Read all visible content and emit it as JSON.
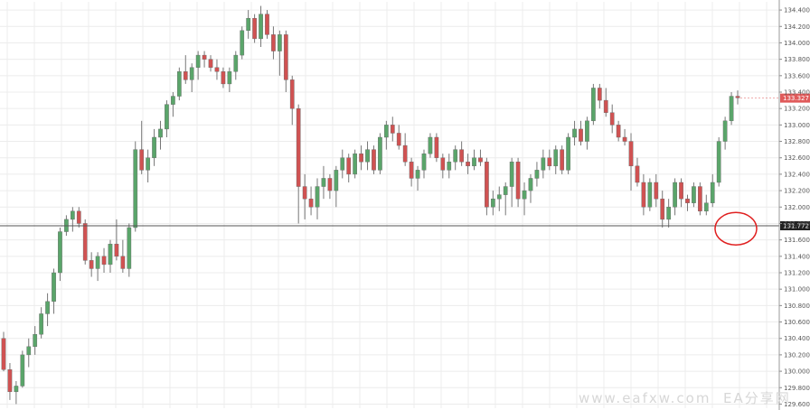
{
  "chart_data": {
    "type": "candlestick",
    "y_axis_ticks": [
      "134.400",
      "134.200",
      "134.000",
      "133.800",
      "133.600",
      "133.400",
      "133.200",
      "133.000",
      "132.800",
      "132.600",
      "132.400",
      "132.200",
      "132.000",
      "131.800",
      "131.600",
      "131.400",
      "131.200",
      "131.000",
      "130.800",
      "130.600",
      "130.400",
      "130.200",
      "130.000",
      "129.800",
      "129.600"
    ],
    "ylim": [
      129.55,
      134.5
    ],
    "grid": true,
    "current_price": {
      "label": "133.327",
      "value": 133.327,
      "color": "#e05a5a"
    },
    "horizontal_level": {
      "label": "131.772",
      "value": 131.772,
      "color": "#555555"
    },
    "colors": {
      "up": "#5aa56a",
      "down": "#d05252",
      "wick": "#777777",
      "grid": "#ececec",
      "circle": "#e02020"
    },
    "highlight": {
      "shape": "ellipse",
      "at_candle_index": 120,
      "price": 131.78
    },
    "candles": [
      [
        130.4,
        130.48,
        130.0,
        130.02
      ],
      [
        130.02,
        130.1,
        129.65,
        129.75
      ],
      [
        129.75,
        129.88,
        129.6,
        129.82
      ],
      [
        129.82,
        130.25,
        129.8,
        130.2
      ],
      [
        130.2,
        130.4,
        130.05,
        130.3
      ],
      [
        130.3,
        130.55,
        130.2,
        130.45
      ],
      [
        130.45,
        130.78,
        130.4,
        130.7
      ],
      [
        130.7,
        130.95,
        130.55,
        130.85
      ],
      [
        130.85,
        131.25,
        130.7,
        131.2
      ],
      [
        131.2,
        131.75,
        131.1,
        131.7
      ],
      [
        131.7,
        131.9,
        131.65,
        131.85
      ],
      [
        131.85,
        132.0,
        131.7,
        131.95
      ],
      [
        131.95,
        132.0,
        131.75,
        131.8
      ],
      [
        131.8,
        131.85,
        131.3,
        131.35
      ],
      [
        131.35,
        131.45,
        131.15,
        131.25
      ],
      [
        131.25,
        131.45,
        131.1,
        131.4
      ],
      [
        131.4,
        131.5,
        131.2,
        131.3
      ],
      [
        131.3,
        131.6,
        131.2,
        131.55
      ],
      [
        131.55,
        131.85,
        131.35,
        131.4
      ],
      [
        131.4,
        131.6,
        131.2,
        131.25
      ],
      [
        131.25,
        131.8,
        131.15,
        131.75
      ],
      [
        131.75,
        132.8,
        131.7,
        132.7
      ],
      [
        132.7,
        133.05,
        132.4,
        132.45
      ],
      [
        132.45,
        132.7,
        132.3,
        132.6
      ],
      [
        132.6,
        132.95,
        132.5,
        132.85
      ],
      [
        132.85,
        133.05,
        132.7,
        132.95
      ],
      [
        132.95,
        133.3,
        132.85,
        133.25
      ],
      [
        133.25,
        133.4,
        133.1,
        133.35
      ],
      [
        133.35,
        133.7,
        133.3,
        133.65
      ],
      [
        133.65,
        133.85,
        133.5,
        133.55
      ],
      [
        133.55,
        133.75,
        133.4,
        133.7
      ],
      [
        133.7,
        133.9,
        133.55,
        133.85
      ],
      [
        133.85,
        133.9,
        133.7,
        133.8
      ],
      [
        133.8,
        133.85,
        133.65,
        133.7
      ],
      [
        133.7,
        133.8,
        133.55,
        133.65
      ],
      [
        133.65,
        133.7,
        133.45,
        133.5
      ],
      [
        133.5,
        133.7,
        133.4,
        133.65
      ],
      [
        133.65,
        133.9,
        133.55,
        133.85
      ],
      [
        133.85,
        134.2,
        133.8,
        134.15
      ],
      [
        134.15,
        134.4,
        134.05,
        134.3
      ],
      [
        134.3,
        134.35,
        134.0,
        134.05
      ],
      [
        134.05,
        134.45,
        133.95,
        134.35
      ],
      [
        134.35,
        134.4,
        134.05,
        134.1
      ],
      [
        134.1,
        134.2,
        133.8,
        133.9
      ],
      [
        133.9,
        134.15,
        133.6,
        134.1
      ],
      [
        134.1,
        134.15,
        133.4,
        133.55
      ],
      [
        133.55,
        133.6,
        133.0,
        133.2
      ],
      [
        133.2,
        133.25,
        131.8,
        132.25
      ],
      [
        132.25,
        132.4,
        131.85,
        132.1
      ],
      [
        132.1,
        132.25,
        131.9,
        132.0
      ],
      [
        132.0,
        132.35,
        131.85,
        132.25
      ],
      [
        132.25,
        132.5,
        132.1,
        132.35
      ],
      [
        132.35,
        132.4,
        132.1,
        132.2
      ],
      [
        132.2,
        132.5,
        132.0,
        132.45
      ],
      [
        132.45,
        132.7,
        132.35,
        132.6
      ],
      [
        132.6,
        132.65,
        132.3,
        132.4
      ],
      [
        132.4,
        132.7,
        132.35,
        132.65
      ],
      [
        132.65,
        132.75,
        132.45,
        132.55
      ],
      [
        132.55,
        132.8,
        132.45,
        132.7
      ],
      [
        132.7,
        132.75,
        132.4,
        132.45
      ],
      [
        132.45,
        132.9,
        132.4,
        132.85
      ],
      [
        132.85,
        133.05,
        132.7,
        133.0
      ],
      [
        133.0,
        133.1,
        132.8,
        132.9
      ],
      [
        132.9,
        133.0,
        132.7,
        132.75
      ],
      [
        132.75,
        132.9,
        132.5,
        132.55
      ],
      [
        132.55,
        132.6,
        132.25,
        132.35
      ],
      [
        132.35,
        132.5,
        132.2,
        132.45
      ],
      [
        132.45,
        132.7,
        132.35,
        132.65
      ],
      [
        132.65,
        132.9,
        132.6,
        132.85
      ],
      [
        132.85,
        132.9,
        132.55,
        132.6
      ],
      [
        132.6,
        132.65,
        132.35,
        132.45
      ],
      [
        132.45,
        132.65,
        132.35,
        132.55
      ],
      [
        132.55,
        132.75,
        132.45,
        132.7
      ],
      [
        132.7,
        132.8,
        132.5,
        132.55
      ],
      [
        132.55,
        132.65,
        132.4,
        132.5
      ],
      [
        132.5,
        132.7,
        132.45,
        132.6
      ],
      [
        132.6,
        132.7,
        132.5,
        132.55
      ],
      [
        132.55,
        132.6,
        131.9,
        132.0
      ],
      [
        132.0,
        132.2,
        131.9,
        132.1
      ],
      [
        132.1,
        132.25,
        131.95,
        132.15
      ],
      [
        132.15,
        132.3,
        131.9,
        132.25
      ],
      [
        132.25,
        132.6,
        132.0,
        132.55
      ],
      [
        132.55,
        132.6,
        132.0,
        132.1
      ],
      [
        132.1,
        132.3,
        131.9,
        132.2
      ],
      [
        132.2,
        132.4,
        132.05,
        132.35
      ],
      [
        132.35,
        132.55,
        132.25,
        132.45
      ],
      [
        132.45,
        132.7,
        132.35,
        132.6
      ],
      [
        132.6,
        132.7,
        132.45,
        132.5
      ],
      [
        132.5,
        132.75,
        132.4,
        132.7
      ],
      [
        132.7,
        132.75,
        132.4,
        132.45
      ],
      [
        132.45,
        132.9,
        132.4,
        132.85
      ],
      [
        132.85,
        133.05,
        132.75,
        132.95
      ],
      [
        132.95,
        133.05,
        132.75,
        132.8
      ],
      [
        132.8,
        133.1,
        132.7,
        133.05
      ],
      [
        133.05,
        133.5,
        133.0,
        133.45
      ],
      [
        133.45,
        133.5,
        133.2,
        133.3
      ],
      [
        133.3,
        133.45,
        133.1,
        133.15
      ],
      [
        133.15,
        133.25,
        132.9,
        133.0
      ],
      [
        133.0,
        133.05,
        132.8,
        132.85
      ],
      [
        132.85,
        132.95,
        132.75,
        132.8
      ],
      [
        132.8,
        132.9,
        132.2,
        132.5
      ],
      [
        132.5,
        132.6,
        132.25,
        132.3
      ],
      [
        132.3,
        132.4,
        131.9,
        132.0
      ],
      [
        132.0,
        132.35,
        131.95,
        132.3
      ],
      [
        132.3,
        132.4,
        132.0,
        132.1
      ],
      [
        132.1,
        132.2,
        131.75,
        131.85
      ],
      [
        131.85,
        132.1,
        131.75,
        132.0
      ],
      [
        132.0,
        132.35,
        131.9,
        132.3
      ],
      [
        132.3,
        132.35,
        132.0,
        132.1
      ],
      [
        132.1,
        132.15,
        131.95,
        132.05
      ],
      [
        132.05,
        132.3,
        132.0,
        132.25
      ],
      [
        132.25,
        132.3,
        131.9,
        131.95
      ],
      [
        131.95,
        132.15,
        131.9,
        132.05
      ],
      [
        132.05,
        132.4,
        132.0,
        132.3
      ],
      [
        132.3,
        132.85,
        132.25,
        132.8
      ],
      [
        132.8,
        133.1,
        132.7,
        133.05
      ],
      [
        133.05,
        133.4,
        133.0,
        133.35
      ],
      [
        133.35,
        133.42,
        133.25,
        133.33
      ]
    ]
  }
}
